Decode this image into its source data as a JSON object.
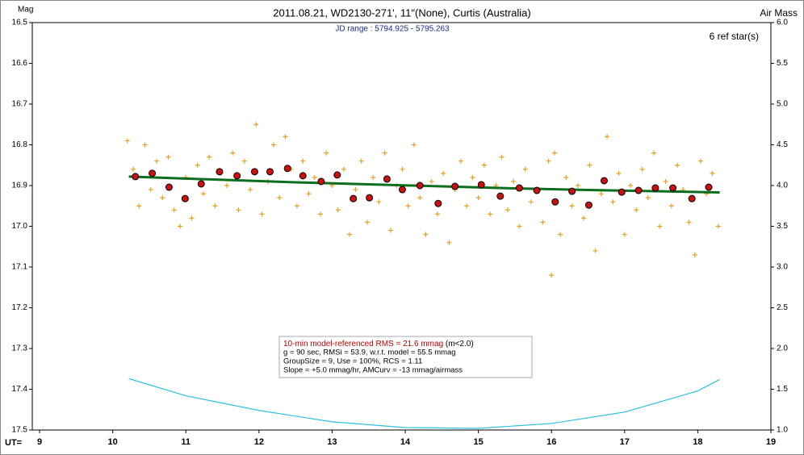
{
  "chart_data": {
    "type": "scatter",
    "title": "2011.08.21, WD2130-271', 11\"(None), Curtis (Australia)",
    "subtitle": "JD range : 5794.925 - 5795.263",
    "annotation": "6 ref star(s)",
    "ylabel": "Mag",
    "y2label": "Air Mass",
    "xlabel": "UT=",
    "xlim": [
      8.9,
      19
    ],
    "xticks": [
      9,
      10,
      11,
      12,
      13,
      14,
      15,
      16,
      17,
      18,
      19
    ],
    "ylim": [
      16.5,
      17.5
    ],
    "y_inverted": true,
    "yticks": [
      16.5,
      16.6,
      16.7,
      16.8,
      16.9,
      {
        "value": 17,
        "label": "17.0"
      },
      17.1,
      17.2,
      17.3,
      17.4,
      17.5
    ],
    "y2lim": [
      1,
      6
    ],
    "y2ticks": [
      {
        "value": 1,
        "label": "1.0"
      },
      1.5,
      {
        "value": 2,
        "label": "2.0"
      },
      2.5,
      {
        "value": 3,
        "label": "3.0"
      },
      3.5,
      {
        "value": 4,
        "label": "4.0"
      },
      4.5,
      {
        "value": 5,
        "label": "5.0"
      },
      5.5,
      {
        "value": 6,
        "label": "6.0"
      }
    ],
    "stats": {
      "headline": "10-min model-referenced RMS = 21.6 mmag",
      "headline_note": "(m<2.0)",
      "headline_color": "#c00000",
      "lines": [
        "g = 90 sec, RMSi = 53.9, w.r.t. model = 55.5 mmag",
        "GroupSize = 9, Use = 100%, RCS = 1.11",
        "Slope = +5.0 mmag/hr, AMCurv = -13 mmag/airmass"
      ]
    },
    "series": [
      {
        "style": "cross",
        "color": "#e8a020",
        "x": [
          10.2,
          10.28,
          10.36,
          10.44,
          10.52,
          10.6,
          10.68,
          10.76,
          10.84,
          10.92,
          11.0,
          11.08,
          11.16,
          11.24,
          11.32,
          11.4,
          11.48,
          11.56,
          11.64,
          11.72,
          11.8,
          11.88,
          11.96,
          12.04,
          12.12,
          12.2,
          12.28,
          12.36,
          12.44,
          12.52,
          12.6,
          12.68,
          12.76,
          12.84,
          12.92,
          13.0,
          13.08,
          13.16,
          13.24,
          13.32,
          13.4,
          13.48,
          13.56,
          13.64,
          13.72,
          13.8,
          13.88,
          13.96,
          14.04,
          14.12,
          14.2,
          14.28,
          14.36,
          14.44,
          14.52,
          14.6,
          14.68,
          14.76,
          14.84,
          14.92,
          15.0,
          15.08,
          15.16,
          15.24,
          15.32,
          15.4,
          15.48,
          15.56,
          15.64,
          15.72,
          15.8,
          15.88,
          15.96,
          16.0,
          16.04,
          16.12,
          16.2,
          16.28,
          16.36,
          16.44,
          16.52,
          16.6,
          16.68,
          16.76,
          16.84,
          16.92,
          17.0,
          17.08,
          17.16,
          17.24,
          17.32,
          17.4,
          17.48,
          17.56,
          17.64,
          17.72,
          17.8,
          17.88,
          17.96,
          18.04,
          18.12,
          18.2,
          18.28
        ],
        "values": [
          16.79,
          16.86,
          16.95,
          16.8,
          16.91,
          16.84,
          16.93,
          16.83,
          16.96,
          17.0,
          16.88,
          16.98,
          16.85,
          16.92,
          16.83,
          16.95,
          16.87,
          16.9,
          16.82,
          16.96,
          16.84,
          16.91,
          16.75,
          16.97,
          16.89,
          16.8,
          16.93,
          16.78,
          16.86,
          16.95,
          16.84,
          16.92,
          16.88,
          16.97,
          16.82,
          16.9,
          16.96,
          16.86,
          17.02,
          16.91,
          16.84,
          16.99,
          16.88,
          16.94,
          16.82,
          17.01,
          16.9,
          16.86,
          16.95,
          16.8,
          16.93,
          17.02,
          16.89,
          16.97,
          16.87,
          17.04,
          16.91,
          16.84,
          16.95,
          16.88,
          16.93,
          16.85,
          16.97,
          16.9,
          16.83,
          16.96,
          16.89,
          17.0,
          16.86,
          16.94,
          16.91,
          16.99,
          16.84,
          17.12,
          16.82,
          17.02,
          16.88,
          16.95,
          16.9,
          16.98,
          16.85,
          17.06,
          16.92,
          16.78,
          16.94,
          16.87,
          17.02,
          16.9,
          16.96,
          16.86,
          16.93,
          16.82,
          17.0,
          16.89,
          16.95,
          16.85,
          16.91,
          16.99,
          17.07,
          16.84,
          16.92,
          16.87,
          17.0
        ]
      },
      {
        "style": "line",
        "color": "#0a6e1e",
        "x": [
          10.22,
          11.5,
          12.5,
          13.5,
          14.5,
          15.5,
          16.5,
          17.5,
          18.3
        ],
        "values": [
          16.878,
          16.886,
          16.892,
          16.897,
          16.902,
          16.907,
          16.911,
          16.914,
          16.917
        ]
      },
      {
        "style": "dot",
        "color": "#cc1010",
        "x": [
          10.31,
          10.54,
          10.77,
          10.99,
          11.21,
          11.46,
          11.7,
          11.94,
          12.15,
          12.39,
          12.6,
          12.85,
          13.07,
          13.29,
          13.51,
          13.75,
          13.96,
          14.2,
          14.45,
          14.68,
          15.04,
          15.3,
          15.56,
          15.8,
          16.05,
          16.28,
          16.51,
          16.72,
          16.96,
          17.19,
          17.42,
          17.66,
          17.92,
          18.15
        ],
        "values": [
          16.878,
          16.87,
          16.904,
          16.932,
          16.896,
          16.866,
          16.876,
          16.866,
          16.866,
          16.858,
          16.876,
          16.89,
          16.874,
          16.932,
          16.93,
          16.884,
          16.91,
          16.9,
          16.944,
          16.902,
          16.898,
          16.926,
          16.906,
          16.912,
          16.94,
          16.914,
          16.948,
          16.888,
          16.916,
          16.912,
          16.906,
          16.906,
          16.932,
          16.904
        ]
      },
      {
        "style": "line",
        "color": "#30c0e0",
        "axis": "y2",
        "x": [
          10.22,
          11,
          12,
          13,
          14,
          15,
          16,
          17,
          18,
          18.3
        ],
        "values": [
          1.63,
          1.42,
          1.24,
          1.1,
          1.03,
          1.02,
          1.08,
          1.22,
          1.48,
          1.62
        ]
      }
    ]
  }
}
